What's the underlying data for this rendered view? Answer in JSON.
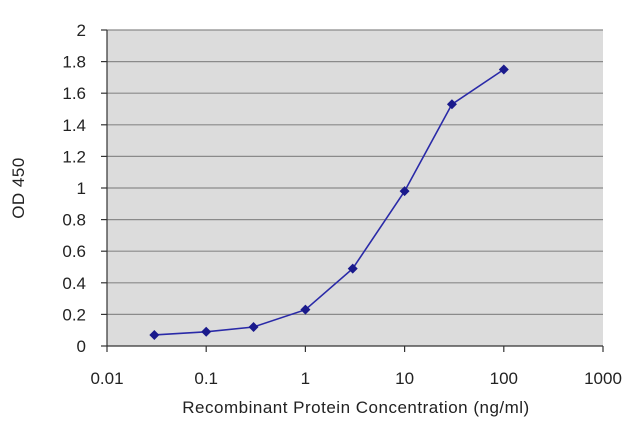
{
  "chart_data": {
    "type": "scatter",
    "title": "",
    "xlabel": "Recombinant Protein Concentration (ng/ml)",
    "ylabel": "OD 450",
    "xscale": "log",
    "xlim": [
      0.01,
      1000
    ],
    "ylim": [
      0,
      2
    ],
    "xticks": [
      {
        "value": 0.01,
        "label": "0.01"
      },
      {
        "value": 0.1,
        "label": "0.1"
      },
      {
        "value": 1,
        "label": "1"
      },
      {
        "value": 10,
        "label": "10"
      },
      {
        "value": 100,
        "label": "100"
      },
      {
        "value": 1000,
        "label": "1000"
      }
    ],
    "yticks": [
      {
        "value": 0,
        "label": "0"
      },
      {
        "value": 0.2,
        "label": "0.2"
      },
      {
        "value": 0.4,
        "label": "0.4"
      },
      {
        "value": 0.6,
        "label": "0.6"
      },
      {
        "value": 0.8,
        "label": "0.8"
      },
      {
        "value": 1,
        "label": "1"
      },
      {
        "value": 1.2,
        "label": "1.2"
      },
      {
        "value": 1.4,
        "label": "1.4"
      },
      {
        "value": 1.6,
        "label": "1.6"
      },
      {
        "value": 1.8,
        "label": "1.8"
      },
      {
        "value": 2,
        "label": "2"
      }
    ],
    "grid": "horizontal",
    "legend": "none",
    "series": [
      {
        "x": [
          0.03,
          0.1,
          0.3,
          1,
          3,
          10,
          30,
          100
        ],
        "y": [
          0.07,
          0.09,
          0.12,
          0.23,
          0.49,
          0.98,
          1.53,
          1.75
        ]
      }
    ],
    "colors": {
      "plot_background": "#dcdcdc",
      "gridline": "#8a8a8a",
      "series": "#2a2aa8",
      "marker": "#1a1a8c",
      "axis": "#333333"
    }
  }
}
